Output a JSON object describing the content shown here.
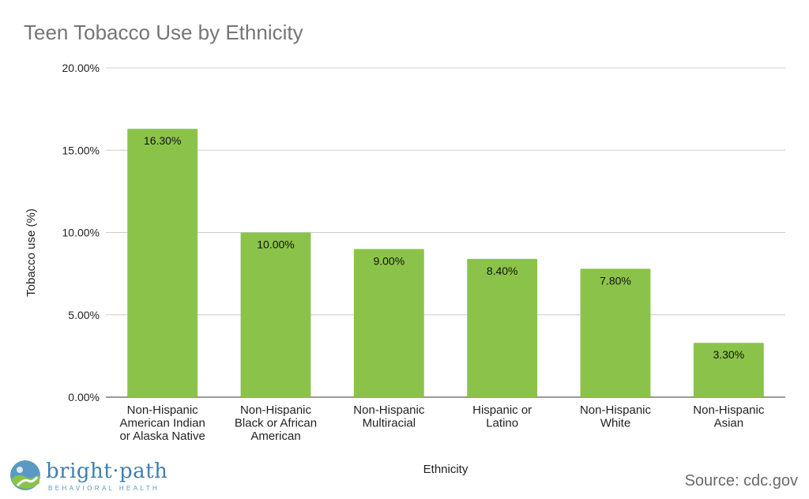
{
  "chart_data": {
    "type": "bar",
    "title": "Teen Tobacco Use by Ethnicity",
    "xlabel": "Ethnicity",
    "ylabel": "Tobacco use (%)",
    "ylim": [
      0,
      20
    ],
    "yticks": [
      "0.00%",
      "5.00%",
      "10.00%",
      "15.00%",
      "20.00%"
    ],
    "grid": true,
    "bar_color": "#8bc34a",
    "categories": [
      [
        "Non-Hispanic",
        "American Indian",
        "or Alaska Native"
      ],
      [
        "Non-Hispanic",
        "Black or African",
        "American"
      ],
      [
        "Non-Hispanic",
        "Multiracial"
      ],
      [
        "Hispanic or",
        "Latino"
      ],
      [
        "Non-Hispanic",
        "White"
      ],
      [
        "Non-Hispanic",
        "Asian"
      ]
    ],
    "values": [
      16.3,
      10.0,
      9.0,
      8.4,
      7.8,
      3.3
    ],
    "data_labels": [
      "16.30%",
      "10.00%",
      "9.00%",
      "8.40%",
      "7.80%",
      "3.30%"
    ]
  },
  "branding": {
    "logo_name": "bright·path",
    "logo_tagline": "BEHAVIORAL HEALTH",
    "source": "Source: cdc.gov"
  },
  "colors": {
    "bar": "#8bc34a",
    "grid": "#cccccc",
    "title": "#757575",
    "logo": "#3f7fae"
  }
}
